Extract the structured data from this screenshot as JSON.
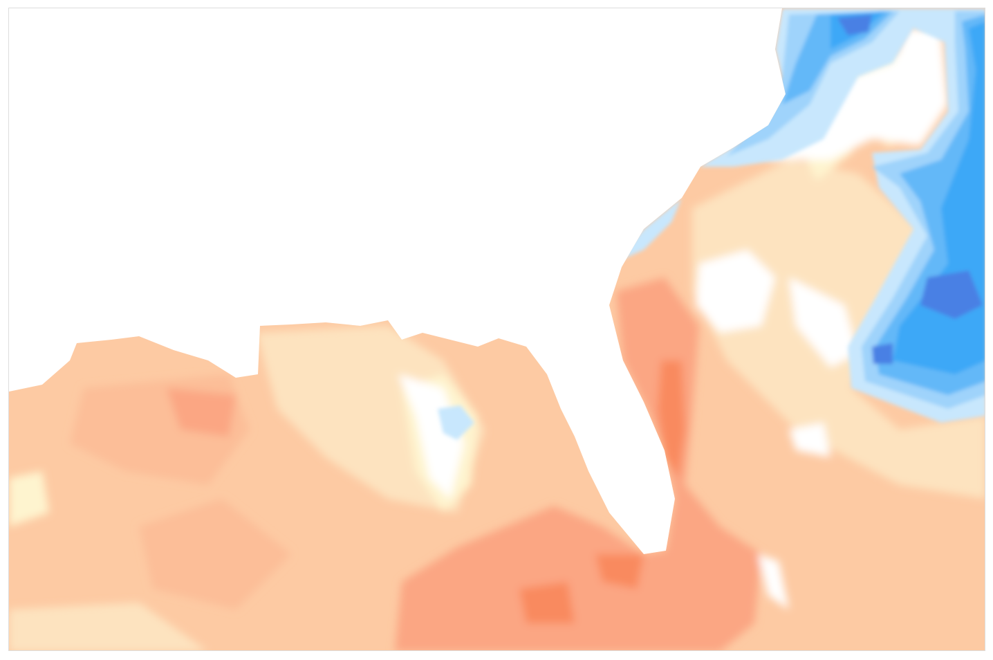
{
  "map": {
    "type": "filled-contour",
    "land_color": "#ffffff",
    "palette": {
      "warm_deep": "#f98a5e",
      "warm_strong": "#fba683",
      "warm_mid": "#fcbe98",
      "warm_base": "#fdcaa3",
      "warm_light": "#fde3bf",
      "warm_pale": "#fef4cf",
      "neutral": "#ffffff",
      "cool_pale": "#c8e7fd",
      "cool_light": "#9fd3fb",
      "cool_mid": "#64b8f8",
      "cool_strong": "#3ea8f7",
      "cool_deep": "#4a80e4"
    }
  }
}
